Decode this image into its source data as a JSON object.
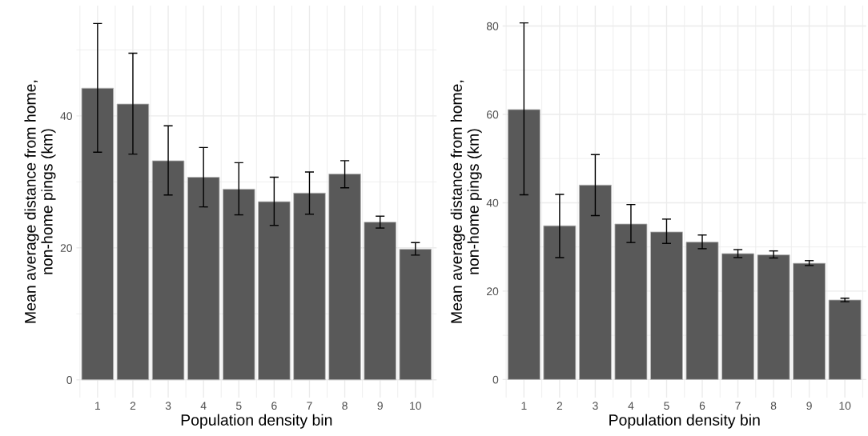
{
  "chart_data": [
    {
      "type": "bar",
      "xlabel": "Population density bin",
      "ylabel": "Mean average distance from home,\nnon-home pings (km)",
      "categories": [
        "1",
        "2",
        "3",
        "4",
        "5",
        "6",
        "7",
        "8",
        "9",
        "10"
      ],
      "values": [
        44.2,
        41.8,
        33.2,
        30.7,
        28.9,
        27.0,
        28.3,
        31.2,
        23.9,
        19.8
      ],
      "errors": [
        [
          34.5,
          54.0
        ],
        [
          34.2,
          49.5
        ],
        [
          28.0,
          38.5
        ],
        [
          26.2,
          35.2
        ],
        [
          25.0,
          32.9
        ],
        [
          23.4,
          30.7
        ],
        [
          25.1,
          31.5
        ],
        [
          29.1,
          33.2
        ],
        [
          23.0,
          24.8
        ],
        [
          18.9,
          20.8
        ]
      ],
      "color": "#595959",
      "ylim": [
        -2.7,
        56.7
      ],
      "yticks": [
        0,
        20,
        40
      ],
      "grid": true
    },
    {
      "type": "bar",
      "xlabel": "Population density bin",
      "ylabel": "Mean average distance from home,\nnon-home pings (km)",
      "categories": [
        "1",
        "2",
        "3",
        "4",
        "5",
        "6",
        "7",
        "8",
        "9",
        "10"
      ],
      "values": [
        61.1,
        34.8,
        44.0,
        35.2,
        33.4,
        31.1,
        28.5,
        28.2,
        26.3,
        18.0
      ],
      "errors": [
        [
          41.8,
          80.7
        ],
        [
          27.6,
          41.9
        ],
        [
          37.1,
          50.9
        ],
        [
          31.0,
          39.6
        ],
        [
          30.8,
          36.3
        ],
        [
          29.6,
          32.7
        ],
        [
          27.6,
          29.4
        ],
        [
          27.5,
          29.1
        ],
        [
          25.8,
          26.9
        ],
        [
          17.6,
          18.4
        ]
      ],
      "color": "#595959",
      "ylim": [
        -4.1,
        84.6
      ],
      "yticks": [
        0,
        20,
        40,
        60,
        80
      ],
      "grid": true
    }
  ]
}
